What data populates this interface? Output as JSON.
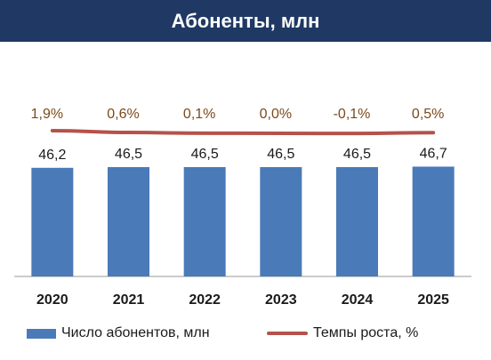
{
  "header": {
    "title": "Абоненты, млн"
  },
  "colors": {
    "header_bg": "#1f3864",
    "bar": "#4a7ab8",
    "line": "#b5524a",
    "growth_label": "#7a4a1a"
  },
  "legend": {
    "bar_label": "Число абонентов, млн",
    "line_label": "Темпы роста, %"
  },
  "chart_data": {
    "type": "bar",
    "categories": [
      "2020",
      "2021",
      "2022",
      "2023",
      "2024",
      "2025"
    ],
    "series": [
      {
        "name": "Число абонентов, млн",
        "type": "bar",
        "values": [
          46.2,
          46.5,
          46.5,
          46.5,
          46.5,
          46.7
        ],
        "labels": [
          "46,2",
          "46,5",
          "46,5",
          "46,5",
          "46,5",
          "46,7"
        ]
      },
      {
        "name": "Темпы роста, %",
        "type": "line",
        "values": [
          1.9,
          0.6,
          0.1,
          0.0,
          -0.1,
          0.5
        ],
        "labels": [
          "1,9%",
          "0,6%",
          "0,1%",
          "0,0%",
          "-0,1%",
          "0,5%"
        ]
      }
    ],
    "title": "Абоненты, млн",
    "legend_position": "bottom",
    "grid": false
  }
}
